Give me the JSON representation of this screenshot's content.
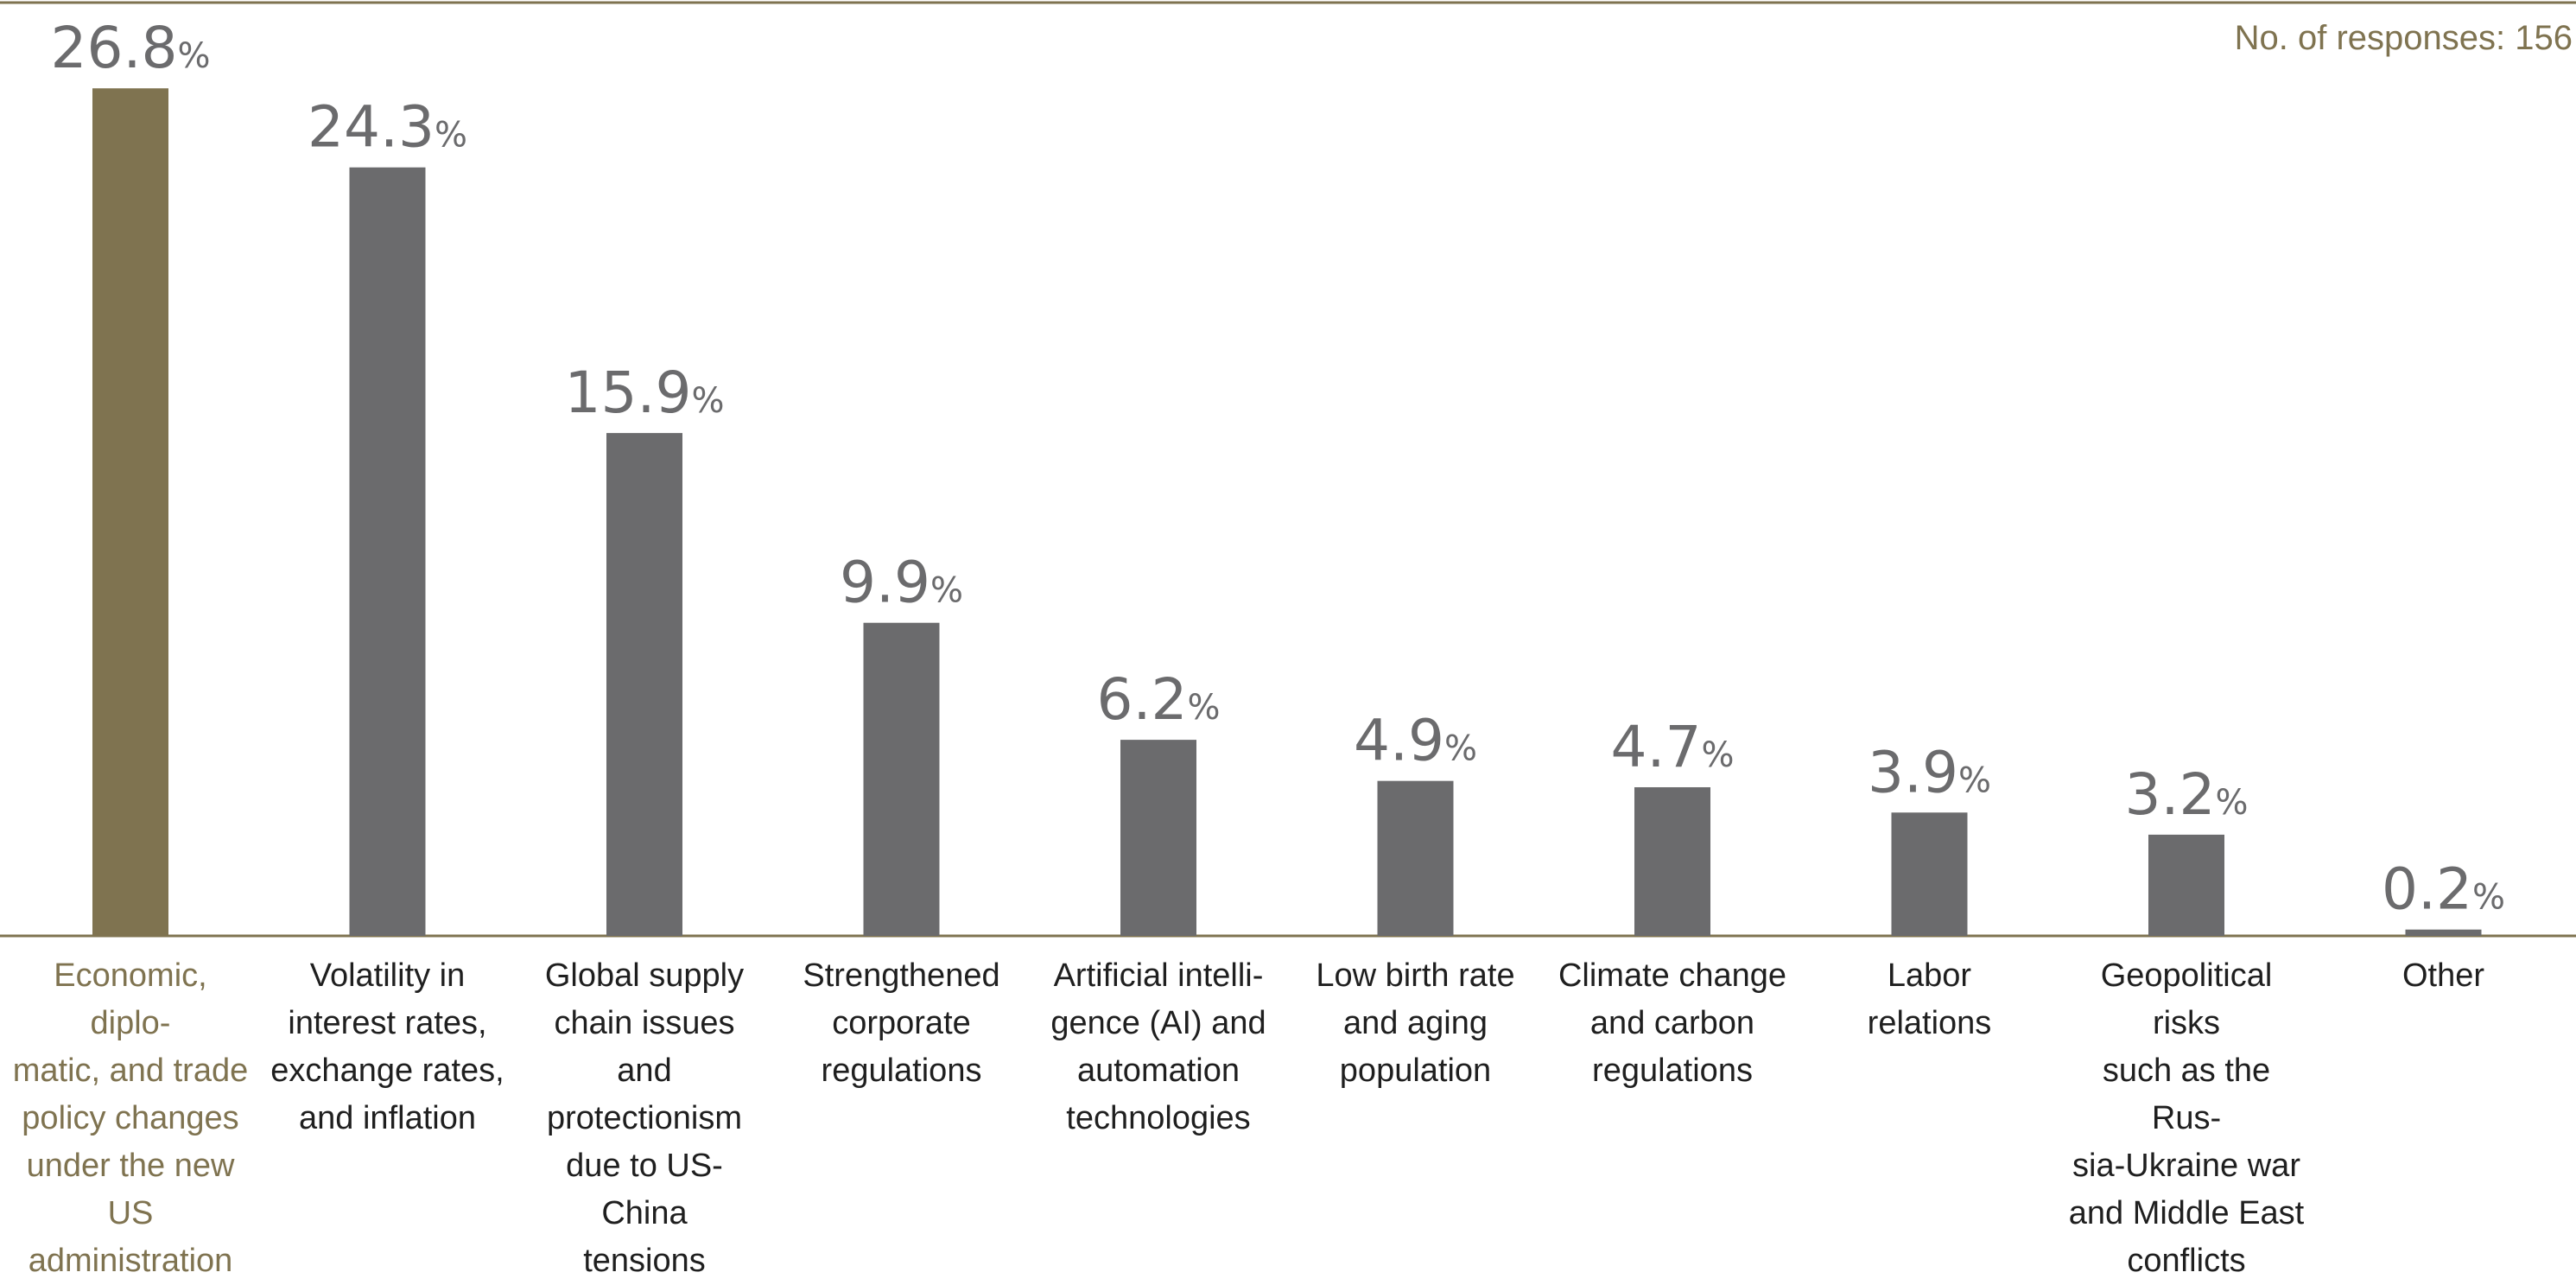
{
  "note": "No. of responses: 156",
  "colors": {
    "accent": "#7f7350",
    "bar": "#6b6b6d",
    "axis": "#7f7350",
    "text": "#1f1f1f"
  },
  "chart_data": {
    "type": "bar",
    "unit": "%",
    "ylim": [
      0,
      28.5
    ],
    "grid": false,
    "categories": [
      "Economic, diplo- matic, and trade policy changes under the new US administration",
      "Volatility in interest rates, exchange rates, and inflation",
      "Global supply chain issues and protectionism due to US-China tensions",
      "Strengthened corporate regulations",
      "Artificial intelli- gence (AI) and automation technologies",
      "Low birth rate and aging population",
      "Climate change and carbon regulations",
      "Labor relations",
      "Geopolitical risks such as the Rus- sia-Ukraine war and Middle East conflicts",
      "Other"
    ],
    "category_lines": [
      [
        "Economic, diplo-",
        "matic, and trade",
        "policy changes",
        "under the new US",
        "administration"
      ],
      [
        "Volatility in",
        "interest rates,",
        "exchange rates,",
        "and inflation"
      ],
      [
        "Global supply",
        "chain issues and",
        "protectionism",
        "due to US-China",
        "tensions"
      ],
      [
        "Strengthened",
        "corporate",
        "regulations"
      ],
      [
        "Artificial intelli-",
        "gence (AI) and",
        "automation",
        "technologies"
      ],
      [
        "Low birth rate",
        "and aging",
        "population"
      ],
      [
        "Climate change",
        "and carbon",
        "regulations"
      ],
      [
        "Labor",
        "relations"
      ],
      [
        "Geopolitical risks",
        "such as the Rus-",
        "sia-Ukraine war",
        "and Middle East",
        "conflicts"
      ],
      [
        "Other"
      ]
    ],
    "values": [
      26.8,
      24.3,
      15.9,
      9.9,
      6.2,
      4.9,
      4.7,
      3.9,
      3.2,
      0.2
    ],
    "value_labels": [
      "26.8",
      "24.3",
      "15.9",
      "9.9",
      "6.2",
      "4.9",
      "4.7",
      "3.9",
      "3.2",
      "0.2"
    ],
    "highlight_index": 0
  }
}
